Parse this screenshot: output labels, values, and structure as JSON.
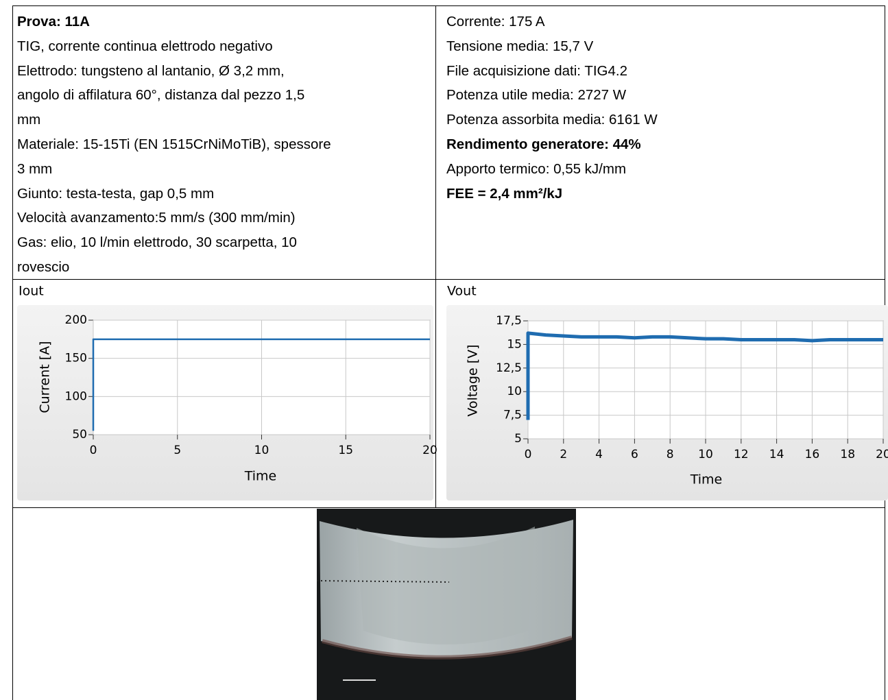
{
  "info_left": {
    "lines": [
      {
        "text": "Prova: 11A",
        "bold": true
      },
      {
        "text": "TIG, corrente continua elettrodo negativo",
        "bold": false
      },
      {
        "text": "Elettrodo: tungsteno al lantanio, Ø 3,2 mm,",
        "bold": false
      },
      {
        "text": "angolo di affilatura 60°, distanza dal pezzo 1,5",
        "bold": false
      },
      {
        "text": "mm",
        "bold": false
      },
      {
        "text": "Materiale: 15-15Ti (EN 1515CrNiMoTiB), spessore",
        "bold": false
      },
      {
        "text": "3 mm",
        "bold": false
      },
      {
        "text": "Giunto: testa-testa, gap 0,5 mm",
        "bold": false
      },
      {
        "text": "Velocità avanzamento:5 mm/s (300 mm/min)",
        "bold": false
      },
      {
        "text": "Gas: elio, 10 l/min elettrodo, 30 scarpetta, 10",
        "bold": false
      },
      {
        "text": "rovescio",
        "bold": false
      }
    ]
  },
  "info_right": {
    "lines": [
      {
        "text": "Corrente: 175 A",
        "bold": false
      },
      {
        "text": "Tensione media: 15,7 V",
        "bold": false
      },
      {
        "text": "File acquisizione dati: TIG4.2",
        "bold": false
      },
      {
        "text": "Potenza utile media: 2727 W",
        "bold": false
      },
      {
        "text": "Potenza assorbita media: 6161 W",
        "bold": false
      },
      {
        "text": "Rendimento generatore: 44%",
        "bold": true
      },
      {
        "text": "Apporto termico: 0,55 kJ/mm",
        "bold": false
      },
      {
        "text": "FEE = 2,4 mm²/kJ",
        "bold": true
      }
    ]
  },
  "charts": [
    {
      "type": "line",
      "title": "Iout",
      "x_label": "Time",
      "y_label": "Current [A]",
      "xlim": [
        0,
        20
      ],
      "xticks": [
        0,
        5,
        10,
        15,
        20
      ],
      "ylim": [
        50,
        200
      ],
      "yticks": [
        50,
        100,
        150,
        200
      ],
      "grid": true,
      "series": [
        {
          "color": "#1f6cb0",
          "x": [
            0,
            0,
            20
          ],
          "values": [
            55,
            175,
            175
          ]
        }
      ]
    },
    {
      "type": "line",
      "title": "Vout",
      "x_label": "Time",
      "y_label": "Voltage [V]",
      "xlim": [
        0,
        20
      ],
      "xticks": [
        0,
        2,
        4,
        6,
        8,
        10,
        12,
        14,
        16,
        18,
        20
      ],
      "ylim": [
        5,
        17.5
      ],
      "yticks": [
        5,
        {
          "value": 7.5,
          "label": "7,5"
        },
        10,
        {
          "value": 12.5,
          "label": "12,5"
        },
        15,
        {
          "value": 17.5,
          "label": "17,5"
        }
      ],
      "grid": true,
      "series": [
        {
          "color": "#1f6cb0",
          "x": [
            0,
            0,
            1,
            2,
            3,
            4,
            5,
            6,
            7,
            8,
            9,
            10,
            11,
            12,
            13,
            14,
            15,
            16,
            17,
            18,
            19,
            20
          ],
          "values": [
            7,
            16.2,
            16.0,
            15.9,
            15.8,
            15.8,
            15.8,
            15.7,
            15.8,
            15.8,
            15.7,
            15.6,
            15.6,
            15.5,
            15.5,
            15.5,
            15.5,
            15.4,
            15.5,
            15.5,
            15.5,
            15.5
          ]
        }
      ]
    }
  ]
}
